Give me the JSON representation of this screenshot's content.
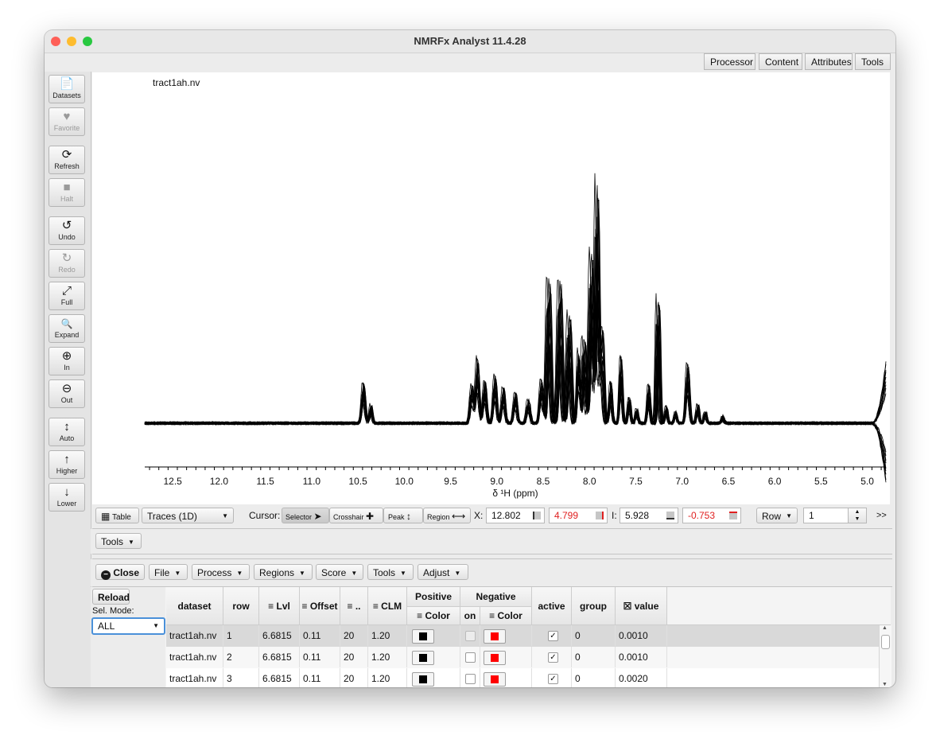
{
  "window": {
    "title": "NMRFx Analyst 11.4.28"
  },
  "top_tabs": [
    "Processor",
    "Content",
    "Attributes",
    "Tools"
  ],
  "sidebar": [
    {
      "label": "Datasets",
      "icon": "file-icon",
      "glyph": "📄",
      "enabled": true
    },
    {
      "label": "Favorite",
      "icon": "heart-icon",
      "glyph": "♥",
      "enabled": false
    },
    {
      "label": "Refresh",
      "icon": "refresh-icon",
      "glyph": "⟳",
      "enabled": true
    },
    {
      "label": "Halt",
      "icon": "stop-icon",
      "glyph": "■",
      "enabled": false
    },
    {
      "label": "Undo",
      "icon": "undo-icon",
      "glyph": "↺",
      "enabled": true
    },
    {
      "label": "Redo",
      "icon": "redo-icon",
      "glyph": "↻",
      "enabled": false
    },
    {
      "label": "Full",
      "icon": "expand-arrows-icon",
      "glyph": "⤢",
      "enabled": true
    },
    {
      "label": "Expand",
      "icon": "search-icon",
      "glyph": "🔍",
      "enabled": true
    },
    {
      "label": "In",
      "icon": "zoom-in-icon",
      "glyph": "⊕",
      "enabled": true
    },
    {
      "label": "Out",
      "icon": "zoom-out-icon",
      "glyph": "⊖",
      "enabled": true
    },
    {
      "label": "Auto",
      "icon": "vertical-arrows-icon",
      "glyph": "↕",
      "enabled": true
    },
    {
      "label": "Higher",
      "icon": "arrow-up-icon",
      "glyph": "↑",
      "enabled": true
    },
    {
      "label": "Lower",
      "icon": "arrow-down-icon",
      "glyph": "↓",
      "enabled": true
    }
  ],
  "plot": {
    "dataset_label": "tract1ah.nv",
    "x_axis_label": "δ ¹H (ppm)",
    "x_ticks": [
      "12.5",
      "12.0",
      "11.5",
      "11.0",
      "10.5",
      "10.0",
      "9.5",
      "9.0",
      "8.5",
      "8.0",
      "7.5",
      "7.0",
      "6.5",
      "6.0",
      "5.5",
      "5.0"
    ],
    "x_range_ppm": [
      12.802,
      4.799
    ],
    "peaks": [
      {
        "ppm": 10.44,
        "height": 0.17,
        "w": 0.025
      },
      {
        "ppm": 10.36,
        "height": 0.08,
        "w": 0.02
      },
      {
        "ppm": 9.27,
        "height": 0.16,
        "w": 0.025
      },
      {
        "ppm": 9.21,
        "height": 0.27,
        "w": 0.025
      },
      {
        "ppm": 9.13,
        "height": 0.18,
        "w": 0.025
      },
      {
        "ppm": 9.02,
        "height": 0.2,
        "w": 0.025
      },
      {
        "ppm": 8.93,
        "height": 0.15,
        "w": 0.025
      },
      {
        "ppm": 8.8,
        "height": 0.13,
        "w": 0.025
      },
      {
        "ppm": 8.66,
        "height": 0.1,
        "w": 0.025
      },
      {
        "ppm": 8.52,
        "height": 0.18,
        "w": 0.025
      },
      {
        "ppm": 8.44,
        "height": 0.61,
        "w": 0.025
      },
      {
        "ppm": 8.32,
        "height": 0.6,
        "w": 0.025
      },
      {
        "ppm": 8.22,
        "height": 0.46,
        "w": 0.025
      },
      {
        "ppm": 8.12,
        "height": 0.3,
        "w": 0.02
      },
      {
        "ppm": 8.06,
        "height": 0.36,
        "w": 0.025
      },
      {
        "ppm": 7.98,
        "height": 0.72,
        "w": 0.025
      },
      {
        "ppm": 7.92,
        "height": 1.0,
        "w": 0.02
      },
      {
        "ppm": 7.87,
        "height": 0.41,
        "w": 0.025
      },
      {
        "ppm": 7.77,
        "height": 0.17,
        "w": 0.02
      },
      {
        "ppm": 7.66,
        "height": 0.28,
        "w": 0.02
      },
      {
        "ppm": 7.57,
        "height": 0.11,
        "w": 0.02
      },
      {
        "ppm": 7.49,
        "height": 0.06,
        "w": 0.02
      },
      {
        "ppm": 7.36,
        "height": 0.16,
        "w": 0.02
      },
      {
        "ppm": 7.26,
        "height": 0.53,
        "w": 0.018
      },
      {
        "ppm": 7.17,
        "height": 0.07,
        "w": 0.02
      },
      {
        "ppm": 7.07,
        "height": 0.05,
        "w": 0.02
      },
      {
        "ppm": 6.94,
        "height": 0.25,
        "w": 0.025
      },
      {
        "ppm": 6.83,
        "height": 0.08,
        "w": 0.02
      },
      {
        "ppm": 6.75,
        "height": 0.05,
        "w": 0.02
      },
      {
        "ppm": 6.56,
        "height": 0.03,
        "w": 0.02
      }
    ]
  },
  "controls": {
    "table_btn": "Table",
    "display_mode": "Traces (1D)",
    "cursor_label": "Cursor:",
    "cursor_modes": [
      {
        "label": "Selector",
        "glyph": "➤",
        "icon": "arrow-pointer-icon"
      },
      {
        "label": "Crosshair",
        "glyph": "✚",
        "icon": "crosshair-icon"
      },
      {
        "label": "Peak",
        "glyph": "↕",
        "icon": "vertical-arrows-icon"
      },
      {
        "label": "Region",
        "glyph": "⟷",
        "icon": "horizontal-arrows-icon"
      }
    ],
    "x_label": "X:",
    "x1": "12.802",
    "x2": "4.799",
    "i_label": "I:",
    "i1": "5.928",
    "i2": "-0.753",
    "row_select": "Row",
    "row_value": "1",
    "more": ">>"
  },
  "tools_bar": {
    "tools": "Tools"
  },
  "panel_toolbar": {
    "close": "Close",
    "menus": [
      "File",
      "Process",
      "Regions",
      "Score",
      "Tools",
      "Adjust"
    ]
  },
  "left_panel": {
    "reload": "Reload",
    "sel_mode_label": "Sel. Mode:",
    "sel_mode_value": "ALL"
  },
  "table": {
    "headers": {
      "dataset": "dataset",
      "row": "row",
      "lvl": "Lvl",
      "offset": "Offset",
      "dots": "..",
      "clm": "CLM",
      "positive": "Positive",
      "pos_color": "Color",
      "negative": "Negative",
      "on": "on",
      "neg_color": "Color",
      "active": "active",
      "group": "group",
      "value": "value"
    },
    "rows": [
      {
        "dataset": "tract1ah.nv",
        "row": "1",
        "lvl": "6.6815",
        "offset": "0.11",
        "dots": "20",
        "clm": "1.20",
        "pos_color": "#000000",
        "on": false,
        "neg_color": "#ff0000",
        "active": true,
        "group": "0",
        "value": "0.0010"
      },
      {
        "dataset": "tract1ah.nv",
        "row": "2",
        "lvl": "6.6815",
        "offset": "0.11",
        "dots": "20",
        "clm": "1.20",
        "pos_color": "#000000",
        "on": false,
        "neg_color": "#ff0000",
        "active": true,
        "group": "0",
        "value": "0.0010"
      },
      {
        "dataset": "tract1ah.nv",
        "row": "3",
        "lvl": "6.6815",
        "offset": "0.11",
        "dots": "20",
        "clm": "1.20",
        "pos_color": "#000000",
        "on": false,
        "neg_color": "#ff0000",
        "active": true,
        "group": "0",
        "value": "0.0020"
      }
    ]
  }
}
